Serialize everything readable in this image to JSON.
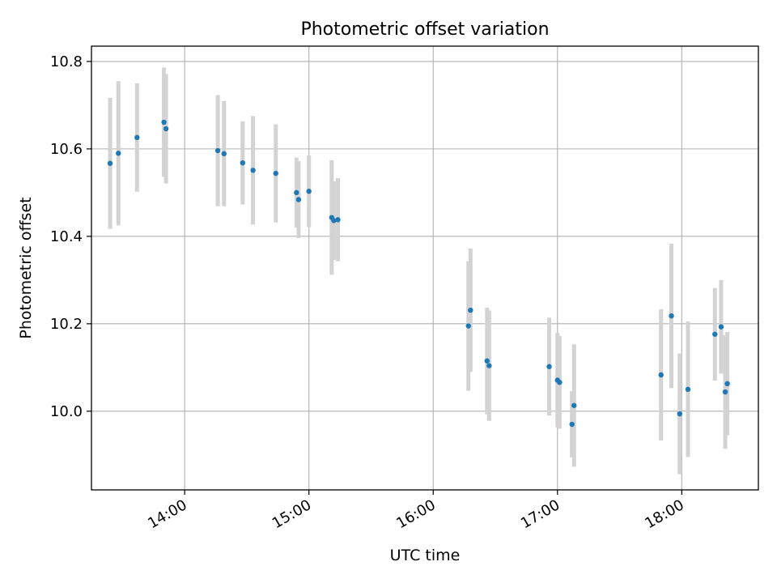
{
  "chart_data": {
    "type": "scatter",
    "title": "Photometric offset variation",
    "xlabel": "UTC time",
    "ylabel": "Photometric offset",
    "xlim": [
      "13:15",
      "18:37"
    ],
    "ylim": [
      9.82,
      10.835
    ],
    "x_ticks": [
      "14:00",
      "15:00",
      "16:00",
      "17:00",
      "18:00"
    ],
    "y_ticks": [
      "10.0",
      "10.2",
      "10.4",
      "10.6",
      "10.8"
    ],
    "grid": true,
    "colors": {
      "points": "#1f77b4",
      "errorbars": "#d3d3d3",
      "grid": "#b0b0b0"
    },
    "points": [
      {
        "x": "13:24",
        "y": 10.567,
        "err": 0.15
      },
      {
        "x": "13:28",
        "y": 10.59,
        "err": 0.165
      },
      {
        "x": "13:37",
        "y": 10.626,
        "err": 0.124
      },
      {
        "x": "13:50",
        "y": 10.661,
        "err": 0.125
      },
      {
        "x": "13:51",
        "y": 10.646,
        "err": 0.125
      },
      {
        "x": "14:16",
        "y": 10.596,
        "err": 0.127
      },
      {
        "x": "14:19",
        "y": 10.589,
        "err": 0.12
      },
      {
        "x": "14:28",
        "y": 10.568,
        "err": 0.095
      },
      {
        "x": "14:33",
        "y": 10.551,
        "err": 0.124
      },
      {
        "x": "14:44",
        "y": 10.544,
        "err": 0.112
      },
      {
        "x": "14:54",
        "y": 10.5,
        "err": 0.08
      },
      {
        "x": "14:55",
        "y": 10.484,
        "err": 0.088
      },
      {
        "x": "15:00",
        "y": 10.503,
        "err": 0.082
      },
      {
        "x": "15:11",
        "y": 10.443,
        "err": 0.131
      },
      {
        "x": "15:12",
        "y": 10.436,
        "err": 0.09
      },
      {
        "x": "15:14",
        "y": 10.438,
        "err": 0.095
      },
      {
        "x": "16:17",
        "y": 10.195,
        "err": 0.148
      },
      {
        "x": "16:18",
        "y": 10.231,
        "err": 0.141
      },
      {
        "x": "16:26",
        "y": 10.115,
        "err": 0.122
      },
      {
        "x": "16:27",
        "y": 10.104,
        "err": 0.126
      },
      {
        "x": "16:56",
        "y": 10.102,
        "err": 0.112
      },
      {
        "x": "17:00",
        "y": 10.071,
        "err": 0.108
      },
      {
        "x": "17:01",
        "y": 10.066,
        "err": 0.106
      },
      {
        "x": "17:07",
        "y": 9.97,
        "err": 0.076
      },
      {
        "x": "17:08",
        "y": 10.013,
        "err": 0.14
      },
      {
        "x": "17:50",
        "y": 10.083,
        "err": 0.15
      },
      {
        "x": "17:55",
        "y": 10.218,
        "err": 0.165
      },
      {
        "x": "17:59",
        "y": 9.994,
        "err": 0.138
      },
      {
        "x": "18:03",
        "y": 10.05,
        "err": 0.155
      },
      {
        "x": "18:16",
        "y": 10.176,
        "err": 0.106
      },
      {
        "x": "18:19",
        "y": 10.193,
        "err": 0.107
      },
      {
        "x": "18:21",
        "y": 10.044,
        "err": 0.13
      },
      {
        "x": "18:22",
        "y": 10.063,
        "err": 0.118
      }
    ]
  }
}
